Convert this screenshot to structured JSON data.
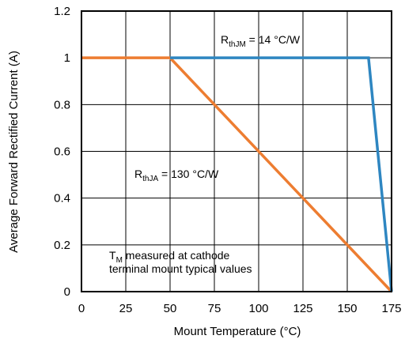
{
  "chart_data": {
    "type": "line",
    "xlabel": "Mount Temperature (°C)",
    "ylabel": "Average Forward Rectified Current (A)",
    "xlim": [
      0,
      175
    ],
    "ylim": [
      0,
      1.2
    ],
    "xticks": [
      0,
      25,
      50,
      75,
      100,
      125,
      150,
      175
    ],
    "yticks": [
      0,
      0.2,
      0.4,
      0.6,
      0.8,
      1,
      1.2
    ],
    "xtick_labels": [
      "0",
      "25",
      "50",
      "75",
      "100",
      "125",
      "150",
      "175"
    ],
    "ytick_labels": [
      "0",
      "0.2",
      "0.4",
      "0.6",
      "0.8",
      "1",
      "1.2"
    ],
    "grid": true,
    "series": [
      {
        "color": "#ed7d31",
        "points": [
          [
            0,
            1
          ],
          [
            50,
            1
          ],
          [
            175,
            0
          ]
        ]
      },
      {
        "color": "#2e86c1",
        "points": [
          [
            50,
            1
          ],
          [
            162,
            1
          ],
          [
            175,
            0
          ]
        ]
      }
    ],
    "annotations": [
      {
        "id": "rthjm",
        "main": "R",
        "sub": "thJM",
        "rest": " = 14 °C/W"
      },
      {
        "id": "rthja",
        "main": "R",
        "sub": "thJA",
        "rest": " = 130 °C/W"
      },
      {
        "id": "tm",
        "main": "T",
        "sub": "M",
        "rest": " measured at cathode",
        "line2": "terminal mount typical values"
      }
    ]
  }
}
